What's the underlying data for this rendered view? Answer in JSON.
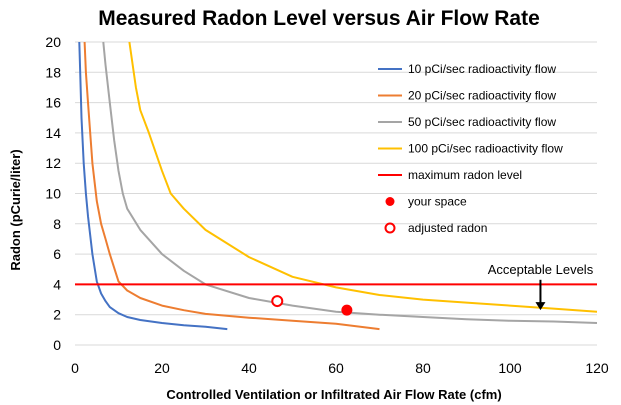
{
  "chart_data": {
    "type": "line",
    "title": "Measured Radon Level versus Air Flow Rate",
    "xlabel": "Controlled Ventilation or Infiltrated Air Flow Rate (cfm)",
    "ylabel": "Radon (pCurie/liter)",
    "xlim": [
      0,
      120
    ],
    "ylim": [
      0,
      20
    ],
    "xticks": [
      0,
      20,
      40,
      60,
      80,
      100,
      120
    ],
    "yticks": [
      0,
      2,
      4,
      6,
      8,
      10,
      12,
      14,
      16,
      18,
      20
    ],
    "grid": "horizontal",
    "legend_position": "top-right",
    "series": [
      {
        "name": "10 pCi/sec radioactivity flow",
        "color": "#4472C4",
        "x": [
          1.0,
          1.2,
          1.5,
          2,
          2.5,
          3,
          4,
          5,
          6,
          7,
          8,
          10,
          12,
          15,
          20,
          25,
          30,
          35
        ],
        "y": [
          20,
          18,
          15,
          12,
          10,
          8.5,
          6,
          4.2,
          3.4,
          2.9,
          2.5,
          2.1,
          1.85,
          1.65,
          1.45,
          1.3,
          1.2,
          1.05
        ]
      },
      {
        "name": "20 pCi/sec radioactivity flow",
        "color": "#ED7D31",
        "x": [
          2.2,
          2.5,
          3,
          3.5,
          4,
          5,
          6,
          7,
          8,
          10,
          12,
          15,
          20,
          25,
          30,
          40,
          50,
          60,
          70
        ],
        "y": [
          20,
          18,
          16,
          14,
          12,
          9.5,
          8,
          7,
          6,
          4.2,
          3.6,
          3.1,
          2.6,
          2.3,
          2.05,
          1.8,
          1.6,
          1.4,
          1.05
        ]
      },
      {
        "name": "50 pCi/sec radioactivity flow",
        "color": "#A5A5A5",
        "x": [
          6.5,
          7,
          8,
          9,
          10,
          11,
          12,
          15,
          20,
          25,
          30,
          40,
          50,
          60,
          70,
          80,
          90,
          100,
          110,
          120
        ],
        "y": [
          20,
          18.5,
          16,
          13.5,
          11.5,
          10,
          9,
          7.6,
          6,
          4.9,
          4.0,
          3.1,
          2.6,
          2.2,
          2.0,
          1.85,
          1.7,
          1.6,
          1.55,
          1.45
        ]
      },
      {
        "name": "100 pCi/sec radioactivity flow",
        "color": "#FFC000",
        "x": [
          12.5,
          14,
          15,
          17,
          20,
          22,
          25,
          30,
          40,
          50,
          60,
          70,
          80,
          90,
          100,
          110,
          120
        ],
        "y": [
          20,
          17,
          15.5,
          14,
          11.5,
          10,
          9,
          7.6,
          5.8,
          4.5,
          3.8,
          3.3,
          3.0,
          2.8,
          2.6,
          2.4,
          2.2
        ]
      }
    ],
    "reference_lines": [
      {
        "name": "maximum radon level",
        "y": 4,
        "color": "#FF0000"
      }
    ],
    "points": [
      {
        "name": "your space",
        "x": 62.5,
        "y": 2.3,
        "style": "filled",
        "color": "#FF0000"
      },
      {
        "name": "adjusted radon",
        "x": 46.5,
        "y": 2.9,
        "style": "hollow",
        "color": "#FF0000"
      }
    ],
    "annotations": [
      {
        "text": "Acceptable Levels",
        "x": 107,
        "y": 4.7,
        "arrow_to_y": 2.3
      }
    ]
  }
}
